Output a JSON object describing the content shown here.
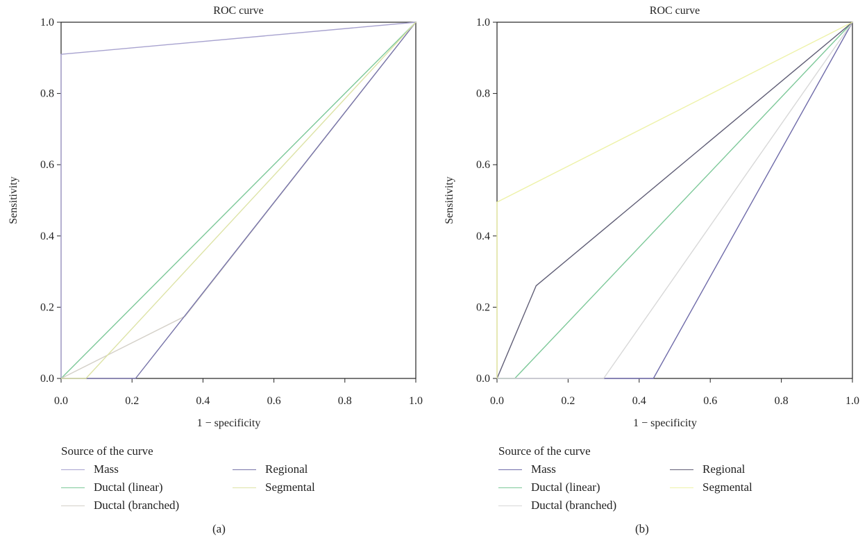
{
  "chart_data": [
    {
      "type": "line",
      "title": "ROC curve",
      "xlabel": "1 − specificity",
      "ylabel": "Sensitivity",
      "xlim": [
        0,
        1
      ],
      "ylim": [
        0,
        1
      ],
      "xticks": [
        "0.0",
        "0.2",
        "0.4",
        "0.6",
        "0.8",
        "1.0"
      ],
      "yticks": [
        "0.0",
        "0.2",
        "0.4",
        "0.6",
        "0.8",
        "1.0"
      ],
      "grid": false,
      "legend_title": "Source of the curve",
      "legend_placement": "bottom",
      "panel_label": "(a)",
      "series": [
        {
          "name": "Mass",
          "color": "#a7a2cf",
          "points": [
            [
              0,
              0
            ],
            [
              0,
              0.91
            ],
            [
              1,
              1
            ]
          ]
        },
        {
          "name": "Ductal (linear)",
          "color": "#7cc898",
          "points": [
            [
              0,
              0
            ],
            [
              1,
              1
            ]
          ]
        },
        {
          "name": "Ductal (branched)",
          "color": "#d4d0c8",
          "points": [
            [
              0,
              0
            ],
            [
              0.35,
              0.175
            ],
            [
              1,
              1
            ]
          ]
        },
        {
          "name": "Regional",
          "color": "#7673a8",
          "points": [
            [
              0,
              0
            ],
            [
              0.21,
              0
            ],
            [
              1,
              1
            ]
          ]
        },
        {
          "name": "Segmental",
          "color": "#dde3a6",
          "points": [
            [
              0,
              0
            ],
            [
              0.07,
              0
            ],
            [
              1,
              1
            ]
          ]
        }
      ]
    },
    {
      "type": "line",
      "title": "ROC curve",
      "xlabel": "1 − specificity",
      "ylabel": "Sensitivity",
      "xlim": [
        0,
        1
      ],
      "ylim": [
        0,
        1
      ],
      "xticks": [
        "0.0",
        "0.2",
        "0.4",
        "0.6",
        "0.8",
        "1.0"
      ],
      "yticks": [
        "0.0",
        "0.2",
        "0.4",
        "0.6",
        "0.8",
        "1.0"
      ],
      "grid": false,
      "legend_title": "Source of the curve",
      "legend_placement": "bottom",
      "panel_label": "(b)",
      "series": [
        {
          "name": "Mass",
          "color": "#6f6ba9",
          "points": [
            [
              0,
              0
            ],
            [
              0.44,
              0
            ],
            [
              1,
              1
            ]
          ]
        },
        {
          "name": "Ductal (linear)",
          "color": "#7cc898",
          "points": [
            [
              0,
              0
            ],
            [
              0.05,
              0
            ],
            [
              1,
              1
            ]
          ]
        },
        {
          "name": "Ductal (branched)",
          "color": "#d8d8d8",
          "points": [
            [
              0,
              0
            ],
            [
              0.3,
              0
            ],
            [
              1,
              1
            ]
          ]
        },
        {
          "name": "Regional",
          "color": "#5f5d75",
          "points": [
            [
              0,
              0
            ],
            [
              0.11,
              0.26
            ],
            [
              1,
              1
            ]
          ]
        },
        {
          "name": "Segmental",
          "color": "#eef2a8",
          "points": [
            [
              0,
              0
            ],
            [
              0,
              0.495
            ],
            [
              1,
              1
            ]
          ]
        }
      ]
    }
  ]
}
